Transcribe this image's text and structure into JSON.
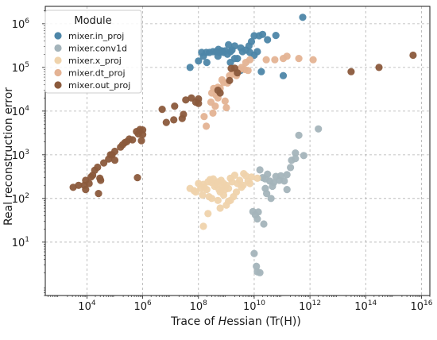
{
  "chart_data": {
    "type": "scatter",
    "xlabel": "Trace of Hessian (Tr(H))",
    "ylabel": "Real reconstruction error",
    "x_scale": "log",
    "y_scale": "log",
    "xlim": [
      320.0,
      2e+16
    ],
    "ylim": [
      0.6,
      2500000.0
    ],
    "x_ticks": [
      10000.0,
      1000000.0,
      100000000.0,
      10000000000.0,
      1000000000000.0,
      100000000000000.0,
      1e+16
    ],
    "x_tick_labels": [
      {
        "base": "10",
        "exp": "4"
      },
      {
        "base": "10",
        "exp": "6"
      },
      {
        "base": "10",
        "exp": "8"
      },
      {
        "base": "10",
        "exp": "10"
      },
      {
        "base": "10",
        "exp": "12"
      },
      {
        "base": "10",
        "exp": "14"
      },
      {
        "base": "10",
        "exp": "16"
      }
    ],
    "y_ticks": [
      10.0,
      100.0,
      1000.0,
      10000.0,
      100000.0,
      1000000.0
    ],
    "y_tick_labels": [
      {
        "base": "10",
        "exp": "1"
      },
      {
        "base": "10",
        "exp": "2"
      },
      {
        "base": "10",
        "exp": "3"
      },
      {
        "base": "10",
        "exp": "4"
      },
      {
        "base": "10",
        "exp": "5"
      },
      {
        "base": "10",
        "exp": "6"
      }
    ],
    "grid": true,
    "legend": {
      "title": "Module",
      "placement": "top-left"
    },
    "series": [
      {
        "name": "mixer.in_proj",
        "color": "#4d86a8",
        "points": [
          [
            50000000.0,
            100000.0
          ],
          [
            100000000.0,
            140000.0
          ],
          [
            130000000.0,
            220000.0
          ],
          [
            190000000.0,
            220000.0
          ],
          [
            250000000.0,
            220000.0
          ],
          [
            330000000.0,
            230000.0
          ],
          [
            430000000.0,
            230000.0
          ],
          [
            500000000.0,
            180000.0
          ],
          [
            570000000.0,
            220000.0
          ],
          [
            520000000.0,
            260000.0
          ],
          [
            680000000.0,
            240000.0
          ],
          [
            800000000.0,
            220000.0
          ],
          [
            900000000.0,
            240000.0
          ],
          [
            1200000000.0,
            330000.0
          ],
          [
            1400000000.0,
            230000.0
          ],
          [
            1600000000.0,
            250000.0
          ],
          [
            2000000000.0,
            310000.0
          ],
          [
            3300000000.0,
            280000.0
          ],
          [
            3800000000.0,
            230000.0
          ],
          [
            5000000000.0,
            250000.0
          ],
          [
            6500000000.0,
            310000.0
          ],
          [
            8000000000.0,
            390000.0
          ],
          [
            10000000000.0,
            530000.0
          ],
          [
            13000000000.0,
            230000.0
          ],
          [
            15000000000.0,
            530000.0
          ],
          [
            20000000000.0,
            570000.0
          ],
          [
            30000000000.0,
            430000.0
          ],
          [
            60000000000.0,
            540000.0
          ],
          [
            7000000000.0,
            220000.0
          ],
          [
            10000000000.0,
            190000.0
          ],
          [
            18000000000.0,
            80000.0
          ],
          [
            1400000000.0,
            130000.0
          ],
          [
            2500000000.0,
            160000.0
          ],
          [
            3200000000.0,
            85000.0
          ],
          [
            2000000000.0,
            160000.0
          ],
          [
            1100000000.0,
            200000.0
          ],
          [
            150000000.0,
            180000.0
          ],
          [
            200000000.0,
            130000.0
          ],
          [
            110000000000.0,
            65000.0
          ],
          [
            550000000000.0,
            1400000.0
          ]
        ]
      },
      {
        "name": "mixer.conv1d",
        "color": "#a4b4bb",
        "points": [
          [
            16000000000.0,
            450.0
          ],
          [
            20000000000.0,
            300.0
          ],
          [
            25000000000.0,
            280.0
          ],
          [
            30000000000.0,
            360.0
          ],
          [
            36000000000.0,
            250.0
          ],
          [
            50000000000.0,
            230.0
          ],
          [
            60000000000.0,
            320.0
          ],
          [
            45000000000.0,
            190.0
          ],
          [
            80000000000.0,
            260.0
          ],
          [
            90000000000.0,
            330.0
          ],
          [
            120000000000.0,
            250.0
          ],
          [
            150000000000.0,
            350.0
          ],
          [
            25000000000.0,
            170.0
          ],
          [
            28000000000.0,
            130.0
          ],
          [
            150000000000.0,
            160.0
          ],
          [
            220000000000.0,
            750.0
          ],
          [
            300000000000.0,
            1100.0
          ],
          [
            400000000000.0,
            2800.0
          ],
          [
            200000000000.0,
            510.0
          ],
          [
            600000000000.0,
            960.0
          ],
          [
            2000000000000.0,
            3900.0
          ],
          [
            300000000000.0,
            820.0
          ],
          [
            9000000000.0,
            50.0
          ],
          [
            14000000000.0,
            49.0
          ],
          [
            13000000000.0,
            34.0
          ],
          [
            11000000000.0,
            42.0
          ],
          [
            22000000000.0,
            26.0
          ],
          [
            40000000000.0,
            100.0
          ],
          [
            10000000000.0,
            5.5
          ],
          [
            12000000000.0,
            2.8
          ],
          [
            13000000000.0,
            2.1
          ],
          [
            16000000000.0,
            2.0
          ]
        ]
      },
      {
        "name": "mixer.x_proj",
        "color": "#efd3ac",
        "points": [
          [
            50000000.0,
            170.0
          ],
          [
            70000000.0,
            150.0
          ],
          [
            80000000.0,
            140.0
          ],
          [
            120000000.0,
            170.0
          ],
          [
            100000000.0,
            220.0
          ],
          [
            140000000.0,
            120.0
          ],
          [
            150000000.0,
            210.0
          ],
          [
            160000000.0,
            180.0
          ],
          [
            200000000.0,
            160.0
          ],
          [
            220000000.0,
            240.0
          ],
          [
            240000000.0,
            110.0
          ],
          [
            260000000.0,
            270.0
          ],
          [
            300000000.0,
            230.0
          ],
          [
            340000000.0,
            280.0
          ],
          [
            380000000.0,
            190.0
          ],
          [
            400000000.0,
            220.0
          ],
          [
            440000000.0,
            200.0
          ],
          [
            500000000.0,
            240.0
          ],
          [
            550000000.0,
            160.0
          ],
          [
            600000000.0,
            140.0
          ],
          [
            650000000.0,
            260.0
          ],
          [
            720000000.0,
            180.0
          ],
          [
            800000000.0,
            220.0
          ],
          [
            900000000.0,
            160.0
          ],
          [
            1000000000.0,
            200.0
          ],
          [
            1200000000.0,
            170.0
          ],
          [
            1400000000.0,
            290.0
          ],
          [
            1600000000.0,
            240.0
          ],
          [
            2000000000.0,
            340.0
          ],
          [
            2500000000.0,
            220.0
          ],
          [
            3000000000.0,
            260.0
          ],
          [
            3500000000.0,
            180.0
          ],
          [
            4200000000.0,
            370.0
          ],
          [
            5000000000.0,
            330.0
          ],
          [
            6000000000.0,
            250.0
          ],
          [
            7000000000.0,
            220.0
          ],
          [
            4000000000.0,
            200.0
          ],
          [
            2300000000.0,
            140.0
          ],
          [
            1800000000.0,
            110.0
          ],
          [
            1400000000.0,
            90.0
          ],
          [
            1200000000.0,
            86.0
          ],
          [
            300000000.0,
            100.0
          ],
          [
            500000000.0,
            90.0
          ],
          [
            800000000.0,
            120.0
          ],
          [
            220000000.0,
            45.0
          ],
          [
            150000000.0,
            23.0
          ],
          [
            1000000000.0,
            70.0
          ],
          [
            600000000.0,
            60.0
          ],
          [
            13000000000.0,
            290.0
          ],
          [
            8000000000.0,
            310.0
          ]
        ]
      },
      {
        "name": "mixer.dt_proj",
        "color": "#e4b394",
        "points": [
          [
            300000000.0,
            26000.0
          ],
          [
            350000000.0,
            33000.0
          ],
          [
            430000000.0,
            23000.0
          ],
          [
            500000000.0,
            20000.0
          ],
          [
            600000000.0,
            33000.0
          ],
          [
            700000000.0,
            52000.0
          ],
          [
            800000000.0,
            45000.0
          ],
          [
            1100000000.0,
            44000.0
          ],
          [
            1300000000.0,
            65000.0
          ],
          [
            1600000000.0,
            70000.0
          ],
          [
            1900000000.0,
            76000.0
          ],
          [
            2300000000.0,
            65000.0
          ],
          [
            3000000000.0,
            90000.0
          ],
          [
            3500000000.0,
            100000.0
          ],
          [
            4500000000.0,
            90000.0
          ],
          [
            5000000000.0,
            130000.0
          ],
          [
            6000000000.0,
            85000.0
          ],
          [
            7000000000.0,
            150000.0
          ],
          [
            500000000.0,
            35000.0
          ],
          [
            280000000.0,
            16000.0
          ],
          [
            400000000.0,
            13000.0
          ],
          [
            330000000.0,
            9000.0
          ],
          [
            160000000.0,
            7500.0
          ],
          [
            190000000.0,
            4500.0
          ],
          [
            900000000.0,
            17000.0
          ],
          [
            1000000000.0,
            12000.0
          ],
          [
            27000000000.0,
            150000.0
          ],
          [
            55000000000.0,
            150000.0
          ],
          [
            110000000000.0,
            160000.0
          ],
          [
            150000000000.0,
            180000.0
          ],
          [
            400000000000.0,
            160000.0
          ],
          [
            1300000000000.0,
            150000.0
          ]
        ]
      },
      {
        "name": "mixer.out_proj",
        "color": "#8b5a3c",
        "points": [
          [
            3200.0,
            180.0
          ],
          [
            5000.0,
            200.0
          ],
          [
            8000.0,
            200.0
          ],
          [
            9000.0,
            160.0
          ],
          [
            9000.0,
            260.0
          ],
          [
            12000.0,
            220.0
          ],
          [
            14000.0,
            310.0
          ],
          [
            16000.0,
            340.0
          ],
          [
            19000.0,
            440.0
          ],
          [
            24000.0,
            520.0
          ],
          [
            26000.0,
            130.0
          ],
          [
            29000.0,
            290.0
          ],
          [
            31000.0,
            260.0
          ],
          [
            40000.0,
            650.0
          ],
          [
            60000.0,
            800.0
          ],
          [
            70000.0,
            1000.0
          ],
          [
            80000.0,
            1000.0
          ],
          [
            100000.0,
            1200.0
          ],
          [
            160000.0,
            1500.0
          ],
          [
            190000.0,
            1700.0
          ],
          [
            230000.0,
            1900.0
          ],
          [
            270000.0,
            2000.0
          ],
          [
            330000.0,
            2300.0
          ],
          [
            430000.0,
            2200.0
          ],
          [
            600000.0,
            3400.0
          ],
          [
            700000.0,
            3000.0
          ],
          [
            800000.0,
            3800.0
          ],
          [
            1000000.0,
            2900.0
          ],
          [
            1000000.0,
            3700.0
          ],
          [
            900000.0,
            2100.0
          ],
          [
            100000.0,
            750.0
          ],
          [
            650000.0,
            300.0
          ],
          [
            7000000.0,
            5500.0
          ],
          [
            13000000.0,
            6300.0
          ],
          [
            26000000.0,
            6800.0
          ],
          [
            29000000.0,
            8400.0
          ],
          [
            5000000.0,
            11000.0
          ],
          [
            14000000.0,
            13000.0
          ],
          [
            35000000.0,
            18000.0
          ],
          [
            56000000.0,
            20000.0
          ],
          [
            80000000.0,
            16000.0
          ],
          [
            100000000.0,
            15000.0
          ],
          [
            100000000.0,
            19000.0
          ],
          [
            1500000000.0,
            95000.0
          ],
          [
            2000000000.0,
            96000.0
          ],
          [
            2500000000.0,
            75000.0
          ],
          [
            30000000000000.0,
            80000.0
          ],
          [
            300000000000000.0,
            100000.0
          ],
          [
            5000000000000000.0,
            190000.0
          ],
          [
            1300000000.0,
            50000.0
          ],
          [
            600000000.0,
            26000.0
          ],
          [
            500000000.0,
            30000.0
          ]
        ]
      }
    ]
  }
}
